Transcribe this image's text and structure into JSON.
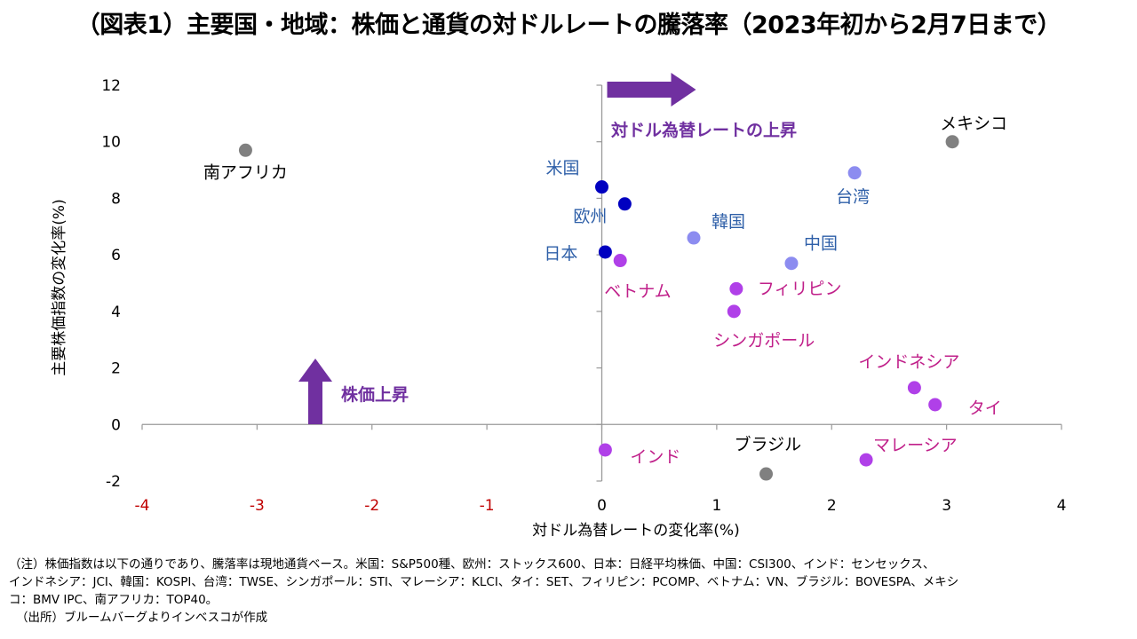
{
  "title": "（図表1）主要国・地域：株価と通貨の対ドルレートの騰落率（2023年初から2月7日まで）",
  "chart_data": {
    "type": "scatter",
    "title": "主要国・地域：株価と通貨の対ドルレートの騰落率（2023年初から2月7日まで）",
    "xlabel": "対ドル為替レートの変化率(%)",
    "ylabel": "主要株価指数の変化率(%)",
    "xlim": [
      -4,
      4
    ],
    "ylim": [
      -2,
      12
    ],
    "xticks": [
      -4,
      -3,
      -2,
      -1,
      0,
      1,
      2,
      3,
      4
    ],
    "yticks": [
      -2,
      0,
      2,
      4,
      6,
      8,
      10,
      12
    ],
    "negative_xtick_color": "#c00000",
    "grid": false,
    "points": [
      {
        "label": "南アフリカ",
        "x": -3.1,
        "y": 9.7,
        "color": "#808080",
        "label_color": "#000000"
      },
      {
        "label": "米国",
        "x": 0.0,
        "y": 8.4,
        "color": "#0000c0",
        "label_color": "#2e5fa8"
      },
      {
        "label": "欧州",
        "x": 0.2,
        "y": 7.8,
        "color": "#0000c0",
        "label_color": "#2e5fa8"
      },
      {
        "label": "日本",
        "x": 0.03,
        "y": 6.1,
        "color": "#0000c0",
        "label_color": "#2e5fa8"
      },
      {
        "label": "ベトナム",
        "x": 0.16,
        "y": 5.8,
        "color": "#b040e8",
        "label_color": "#c0208a"
      },
      {
        "label": "韓国",
        "x": 0.8,
        "y": 6.6,
        "color": "#8c8cf0",
        "label_color": "#2e5fa8"
      },
      {
        "label": "台湾",
        "x": 2.2,
        "y": 8.9,
        "color": "#8c8cf0",
        "label_color": "#2e5fa8"
      },
      {
        "label": "中国",
        "x": 1.65,
        "y": 5.7,
        "color": "#8c8cf0",
        "label_color": "#2e5fa8"
      },
      {
        "label": "メキシコ",
        "x": 3.05,
        "y": 10.0,
        "color": "#808080",
        "label_color": "#000000"
      },
      {
        "label": "フィリピン",
        "x": 1.17,
        "y": 4.8,
        "color": "#b040e8",
        "label_color": "#c0208a"
      },
      {
        "label": "シンガポール",
        "x": 1.15,
        "y": 4.0,
        "color": "#b040e8",
        "label_color": "#c0208a"
      },
      {
        "label": "インドネシア",
        "x": 2.72,
        "y": 1.3,
        "color": "#b040e8",
        "label_color": "#c0208a"
      },
      {
        "label": "タイ",
        "x": 2.9,
        "y": 0.7,
        "color": "#b040e8",
        "label_color": "#c0208a"
      },
      {
        "label": "インド",
        "x": 0.03,
        "y": -0.9,
        "color": "#b040e8",
        "label_color": "#c0208a"
      },
      {
        "label": "ブラジル",
        "x": 1.43,
        "y": -1.75,
        "color": "#808080",
        "label_color": "#000000"
      },
      {
        "label": "マレーシア",
        "x": 2.3,
        "y": -1.25,
        "color": "#b040e8",
        "label_color": "#c0208a"
      }
    ],
    "annotations": [
      {
        "text": "対ドル為替レートの上昇",
        "arrow": "right",
        "color": "#7030a0"
      },
      {
        "text": "株価上昇",
        "arrow": "up",
        "color": "#7030a0"
      }
    ]
  },
  "notes": [
    "（注）株価指数は以下の通りであり、騰落率は現地通貨ベース。米国：S&P500種、欧州：ストックス600、日本：日経平均株価、中国：CSI300、インド：センセックス、",
    "インドネシア：JCI、韓国：KOSPI、台湾：TWSE、シンガポール：STI、マレーシア：KLCI、タイ：SET、フィリピン：PCOMP、ベトナム：VN、ブラジル：BOVESPA、メキシ",
    "コ：BMV IPC、南アフリカ：TOP40。",
    "（出所）ブルームバーグよりインベスコが作成"
  ]
}
